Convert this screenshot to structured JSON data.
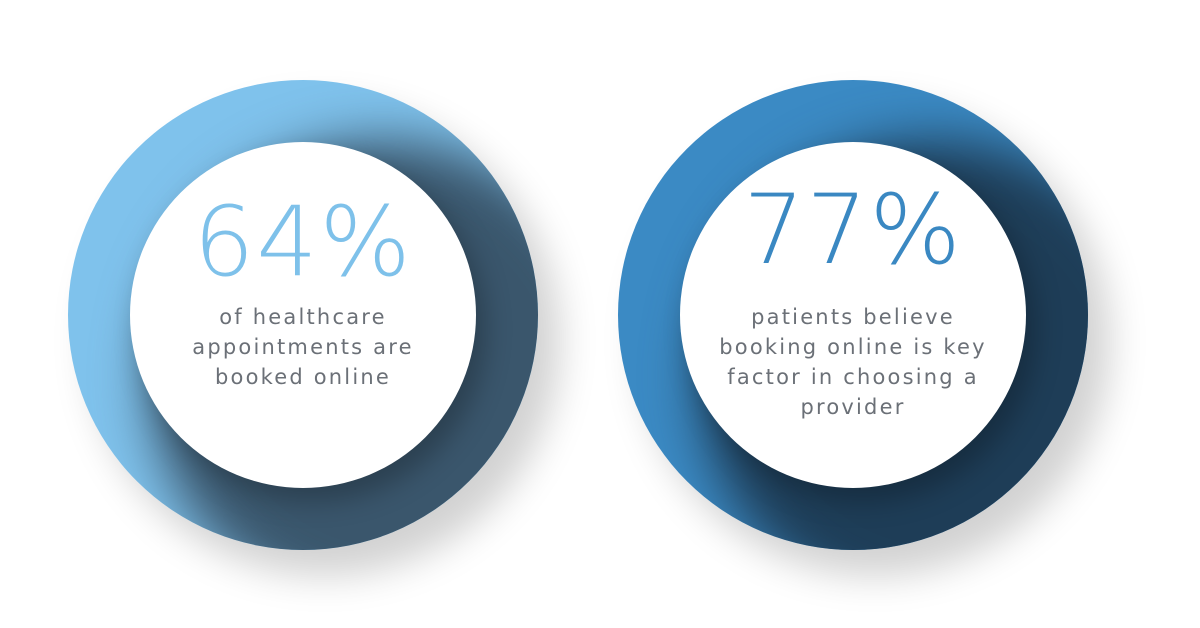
{
  "stats": [
    {
      "value": "64%",
      "caption": "of healthcare appointments are booked online",
      "ring_color": "#7fc2ec",
      "ring_shadow_color": "#3a566c",
      "value_color": "#7ec1ea"
    },
    {
      "value": "77%",
      "caption": "patients believe booking online is key factor in choosing a provider",
      "ring_color": "#3b8ac4",
      "ring_shadow_color": "#1e3d57",
      "value_color": "#3a88c2"
    }
  ]
}
